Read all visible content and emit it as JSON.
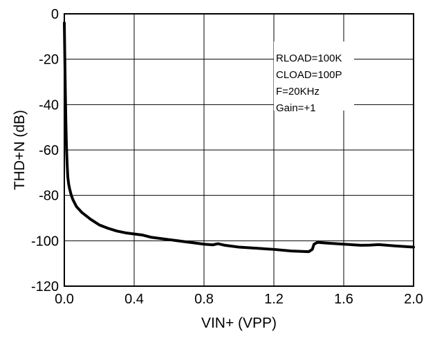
{
  "chart_data": {
    "type": "line",
    "title": "",
    "xlabel": "VIN+ (VPP)",
    "ylabel": "THD+N (dB)",
    "xlim": [
      0,
      2.0
    ],
    "ylim": [
      -120,
      0
    ],
    "xticks": [
      0,
      0.4,
      0.8,
      1.2,
      1.6,
      2.0
    ],
    "xtick_labels": [
      "0.0",
      "0.4",
      "0.8",
      "1.2",
      "1.6",
      "2.0"
    ],
    "yticks": [
      0,
      -20,
      -40,
      -60,
      -80,
      -100,
      -120
    ],
    "ytick_labels": [
      "0",
      "-20",
      "-40",
      "-60",
      "-80",
      "-100",
      "-120"
    ],
    "grid": true,
    "annotations": [
      "RLOAD=100K",
      "CLOAD=100P",
      "F=20KHz",
      "Gain=+1"
    ],
    "series": [
      {
        "x": [
          0.0,
          0.003,
          0.006,
          0.009,
          0.012,
          0.016,
          0.02,
          0.025,
          0.03,
          0.04,
          0.05,
          0.07,
          0.1,
          0.15,
          0.2,
          0.25,
          0.3,
          0.35,
          0.4,
          0.45,
          0.5,
          0.6,
          0.7,
          0.8,
          0.85,
          0.88,
          0.92,
          1.0,
          1.1,
          1.2,
          1.3,
          1.4,
          1.42,
          1.43,
          1.45,
          1.5,
          1.6,
          1.7,
          1.75,
          1.8,
          1.85,
          1.9,
          2.0
        ],
        "y": [
          -4,
          -20,
          -35,
          -48,
          -58,
          -66,
          -72,
          -75,
          -77,
          -80,
          -82,
          -85,
          -87.5,
          -90.5,
          -93,
          -94.5,
          -95.7,
          -96.5,
          -97,
          -97.5,
          -98.5,
          -99.5,
          -100.5,
          -101.5,
          -101.8,
          -101.3,
          -102,
          -102.8,
          -103.3,
          -103.8,
          -104.5,
          -104.8,
          -103.8,
          -101.5,
          -100.7,
          -101,
          -101.5,
          -102,
          -101.9,
          -101.7,
          -102,
          -102.3,
          -102.8
        ]
      }
    ],
    "line_color": "#000000"
  }
}
